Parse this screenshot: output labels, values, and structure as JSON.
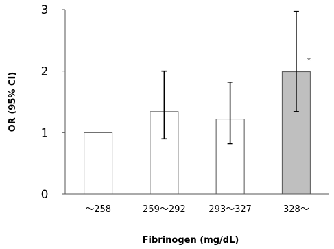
{
  "chart_data": {
    "type": "bar",
    "title": "",
    "xlabel": "Fibrinogen (mg/dL)",
    "ylabel": "OR (95% CI)",
    "categories": [
      "～258",
      "259～292",
      "293～327",
      "328～"
    ],
    "values": [
      1.0,
      1.34,
      1.22,
      1.99
    ],
    "ci_lower": [
      null,
      0.9,
      0.82,
      1.34
    ],
    "ci_upper": [
      null,
      2.0,
      1.82,
      2.97
    ],
    "annotations": [
      "",
      "",
      "",
      "*"
    ],
    "bar_colors": [
      "#ffffff",
      "#ffffff",
      "#ffffff",
      "#bfbfbf"
    ],
    "ylim": [
      0,
      3
    ],
    "yticks": [
      0,
      1,
      2,
      3
    ],
    "grid": false,
    "legend": "none"
  }
}
